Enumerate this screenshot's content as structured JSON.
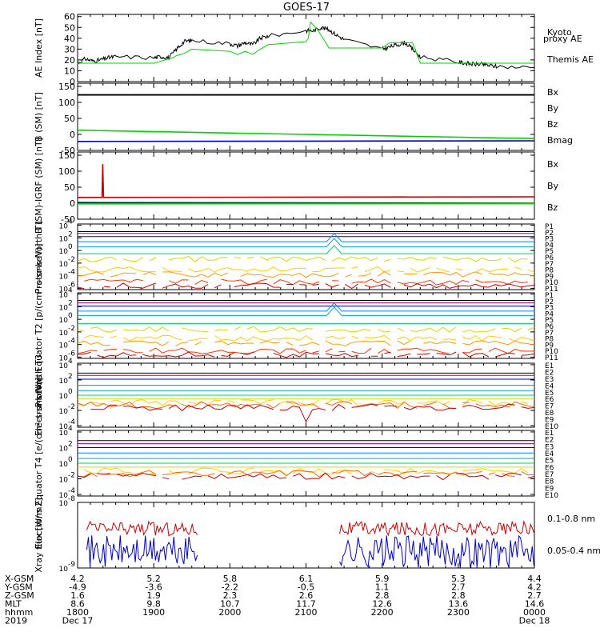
{
  "title": "GOES-17",
  "colors": {
    "black": "#000000",
    "green": "#00d400",
    "blue": "#0000cc",
    "red": "#cc0000",
    "proton_levels": [
      "#000000",
      "#aa0066",
      "#0000cc",
      "#0088ff",
      "#00aacc",
      "#00cc66",
      "#ccdd00",
      "#ffcc00",
      "#ff9900",
      "#ff3300",
      "#cc0000"
    ],
    "electron_levels": [
      "#000000",
      "#aa0066",
      "#0000cc",
      "#0088ff",
      "#00aacc",
      "#00cc66",
      "#ccdd00",
      "#ffcc00",
      "#ff6600",
      "#cc0000"
    ]
  },
  "chart_data": [
    {
      "type": "line",
      "panel": "ae",
      "ylabel": "AE Index [nT]",
      "yticks": [
        "0",
        "10",
        "20",
        "30",
        "40",
        "50",
        "60"
      ],
      "ylim": [
        0,
        62
      ],
      "xlim": [
        1800,
        2400
      ],
      "legend": [
        {
          "name": "Kyoto proxy AE",
          "color": "#00d400"
        },
        {
          "name": "Themis AE",
          "color": "#000000"
        }
      ],
      "series": [
        {
          "name": "Themis AE",
          "color": "#000000",
          "x": [
            1800,
            1810,
            1820,
            1830,
            1840,
            1850,
            1900,
            1910,
            1920,
            1930,
            1940,
            1950,
            2000,
            2010,
            2020,
            2030,
            2040,
            2050,
            2100,
            2110,
            2120,
            2130,
            2140,
            2150,
            2200,
            2210,
            2220,
            2230,
            2240,
            2250,
            2300,
            2310,
            2320,
            2330,
            2340,
            2350,
            2400
          ],
          "y": [
            17,
            21,
            19,
            20,
            22,
            23,
            22,
            23,
            22,
            30,
            37,
            38,
            35,
            33,
            36,
            34,
            40,
            42,
            47,
            47,
            50,
            48,
            43,
            39,
            30,
            32,
            34,
            36,
            30,
            23,
            18,
            17,
            16,
            16,
            15,
            14,
            13
          ]
        },
        {
          "name": "Kyoto proxy AE",
          "color": "#00d400",
          "x": [
            1800,
            1830,
            1900,
            1925,
            1930,
            1940,
            1950,
            2000,
            2010,
            2020,
            2030,
            2040,
            2050,
            2100,
            2103,
            2106,
            2115,
            2125,
            2130,
            2140,
            2150,
            2200,
            2210,
            2220,
            2230,
            2240,
            2250,
            2300,
            2400
          ],
          "y": [
            17,
            17,
            17,
            22,
            24,
            26,
            30,
            28,
            25,
            28,
            25,
            30,
            34,
            37,
            40,
            55,
            48,
            37,
            31,
            31,
            31,
            31,
            36,
            36,
            36,
            36,
            17,
            17,
            17
          ]
        }
      ]
    },
    {
      "type": "line",
      "panel": "bsm",
      "ylabel": "B (SM) [nT]",
      "yticks": [
        "-50",
        "0",
        "50",
        "100",
        "150"
      ],
      "ylim": [
        -50,
        160
      ],
      "xlim": [
        1800,
        2400
      ],
      "series": [
        {
          "name": "Bx",
          "color": "#0000cc",
          "x": [
            1800,
            2400
          ],
          "y": [
            -22,
            -20
          ]
        },
        {
          "name": "By",
          "color": "#00d400",
          "x": [
            1800,
            2400
          ],
          "y": [
            13,
            -13
          ]
        },
        {
          "name": "Bz",
          "color": "#cc0000",
          "x": [
            1800,
            2400
          ],
          "y": [
            123,
            123
          ]
        },
        {
          "name": "Bmag",
          "color": "#000000",
          "x": [
            1800,
            2400
          ],
          "y": [
            124,
            124
          ]
        }
      ]
    },
    {
      "type": "line",
      "panel": "igrf",
      "ylabel": "B (SM)-IGRF (SM) [nT]",
      "yticks": [
        "-50",
        "0",
        "50",
        "100",
        "150"
      ],
      "ylim": [
        -50,
        160
      ],
      "xlim": [
        1800,
        2400
      ],
      "series": [
        {
          "name": "Bx",
          "color": "#0000cc",
          "x": [
            1800,
            2400
          ],
          "y": [
            2,
            0
          ]
        },
        {
          "name": "By",
          "color": "#00d400",
          "x": [
            1800,
            2400
          ],
          "y": [
            -2,
            -1
          ]
        },
        {
          "name": "Bz",
          "color": "#cc0000",
          "x": [
            1800,
            1832,
            1833,
            1834,
            2400
          ],
          "y": [
            18,
            18,
            122,
            18,
            20
          ]
        }
      ]
    },
    {
      "type": "line",
      "panel": "p_t1",
      "yscale": "log",
      "ylabel": "Protons North T1",
      "yticks": [
        "10",
        "10",
        "10",
        "10",
        "10",
        "10"
      ],
      "yexp": [
        "4",
        "2",
        "0",
        "-2",
        "-4",
        "-6"
      ],
      "ylim": [
        -6.2,
        4.2
      ],
      "xlim": [
        1800,
        2400
      ],
      "levels": [
        "P1",
        "P2",
        "P3",
        "P4",
        "P5",
        "P6",
        "P7",
        "P8",
        "P9",
        "P10",
        "P11"
      ],
      "log_values": [
        3.0,
        2.7,
        2.2,
        1.4,
        0.6,
        -0.5,
        -1.4,
        -3.0,
        -3.8,
        -5.0,
        -5.6
      ],
      "spike": {
        "x": 2137,
        "levels": [
          3,
          4,
          5
        ],
        "delta": 1.3
      }
    },
    {
      "type": "line",
      "panel": "p_t2",
      "yscale": "log",
      "ylabel": "Protons Equator T2 [p/(cm²-s-sr-keV)]",
      "yticks": [
        "10",
        "10",
        "10",
        "10",
        "10",
        "10"
      ],
      "yexp": [
        "4",
        "2",
        "0",
        "-2",
        "-4",
        "-6"
      ],
      "ylim": [
        -6.2,
        4.2
      ],
      "xlim": [
        1800,
        2400
      ],
      "levels": [
        "P1",
        "P2",
        "P3",
        "P4",
        "P5",
        "P6",
        "P7",
        "P8",
        "P9",
        "P10",
        "P11"
      ],
      "log_values": [
        3.0,
        2.6,
        2.1,
        1.3,
        0.6,
        -0.7,
        -1.6,
        -3.0,
        -3.8,
        -5.0,
        -5.6
      ],
      "spike": {
        "x": 2137,
        "levels": [
          3,
          4
        ],
        "delta": 1.3
      }
    },
    {
      "type": "line",
      "panel": "e_t3",
      "yscale": "log",
      "ylabel": "Electrons North T3",
      "yticks": [
        "10",
        "10",
        "10",
        "10",
        "10"
      ],
      "yexp": [
        "4",
        "2",
        "0",
        "-2",
        "-4"
      ],
      "ylim": [
        -4.2,
        4.2
      ],
      "xlim": [
        1800,
        2400
      ],
      "levels": [
        "E1",
        "E2",
        "E3",
        "E4",
        "E5",
        "E6",
        "E7",
        "E8",
        "E9",
        "E10"
      ],
      "log_values": [
        2.9,
        2.6,
        2.1,
        1.3,
        0.6,
        0.0,
        -0.5,
        -1.0,
        -1.3,
        -1.6
      ],
      "dip": {
        "x": 2100,
        "level": 9,
        "delta": -2.2
      }
    },
    {
      "type": "line",
      "panel": "e_t4",
      "yscale": "log",
      "ylabel": "Electrons Equator T4 [e/(cm²-s-sr-keV)]",
      "yticks": [
        "10",
        "10",
        "10",
        "10",
        "10"
      ],
      "yexp": [
        "4",
        "2",
        "0",
        "-2",
        "-4"
      ],
      "ylim": [
        -4.2,
        4.2
      ],
      "xlim": [
        1800,
        2400
      ],
      "levels": [
        "E1",
        "E2",
        "E3",
        "E4",
        "E5",
        "E6",
        "E7",
        "E8",
        "E9",
        "E10"
      ],
      "log_values": [
        2.9,
        2.5,
        2.0,
        1.3,
        0.6,
        0.0,
        -0.5,
        -1.0,
        -1.3,
        -1.7
      ]
    },
    {
      "type": "line",
      "panel": "xray",
      "yscale": "log",
      "ylabel": "Xray flux [W/m2]",
      "yticks": [
        "10",
        "10"
      ],
      "yexp": [
        "-8",
        "-9"
      ],
      "ylim": [
        -9,
        -8
      ],
      "xlim": [
        1800,
        2400
      ],
      "gaps": [
        [
          1958,
          2144
        ]
      ],
      "series": [
        {
          "name": "0.1-0.8 nm",
          "color": "#cc0000",
          "mean": -8.4
        },
        {
          "name": "0.05-0.4 nm",
          "color": "#0000cc",
          "mean": -8.75
        }
      ]
    }
  ],
  "xaxis": {
    "rows": [
      "X-GSM",
      "Y-GSM",
      "Z-GSM",
      "MLT",
      "hhmm",
      "2019"
    ],
    "columns": [
      {
        "x": 1800,
        "vals": [
          "4.2",
          "-4.9",
          "1.6",
          "8.6",
          "1800",
          "Dec 17"
        ]
      },
      {
        "x": 1900,
        "vals": [
          "5.2",
          "-3.6",
          "1.9",
          "9.8",
          "1900",
          ""
        ]
      },
      {
        "x": 2000,
        "vals": [
          "5.8",
          "-2.2",
          "2.3",
          "10.7",
          "2000",
          ""
        ]
      },
      {
        "x": 2100,
        "vals": [
          "6.1",
          "-0.5",
          "2.6",
          "11.7",
          "2100",
          ""
        ]
      },
      {
        "x": 2200,
        "vals": [
          "5.9",
          "1.1",
          "2.8",
          "12.6",
          "2200",
          ""
        ]
      },
      {
        "x": 2300,
        "vals": [
          "5.3",
          "2.7",
          "2.8",
          "13.6",
          "2300",
          ""
        ]
      },
      {
        "x": 2400,
        "vals": [
          "4.4",
          "4.2",
          "2.7",
          "14.6",
          "0000",
          "Dec 18"
        ]
      }
    ]
  }
}
